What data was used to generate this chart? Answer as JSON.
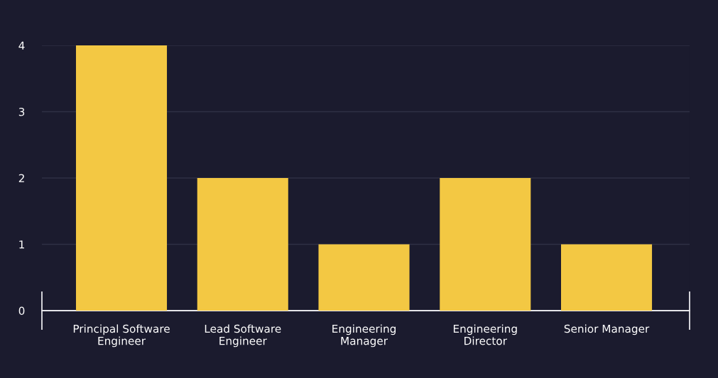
{
  "chart_data": {
    "type": "bar",
    "categories": [
      "Principal Software\nEngineer",
      "Lead Software\nEngineer",
      "Engineering\nManager",
      "Engineering\nDirector",
      "Senior Manager"
    ],
    "values": [
      4,
      2,
      1,
      2,
      1
    ],
    "color": "#f3c843",
    "ylim": [
      0,
      4
    ],
    "yticks": [
      0,
      1,
      2,
      3,
      4
    ],
    "grid": "y",
    "legend": false
  }
}
